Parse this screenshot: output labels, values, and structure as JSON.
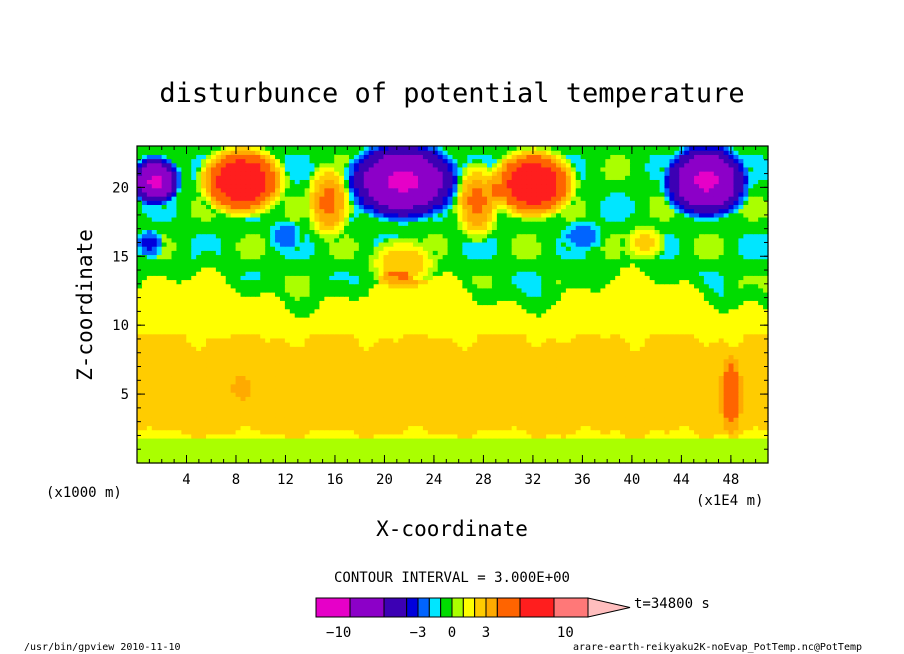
{
  "chart_data": {
    "type": "heatmap",
    "title": "disturbunce of potential temperature",
    "xlabel": "X-coordinate",
    "ylabel": "Z-coordinate",
    "x_unit_left": "(x1000 m)",
    "x_unit_right": "(x1E4 m)",
    "xlim": [
      0,
      51
    ],
    "ylim": [
      0,
      23
    ],
    "x_ticks": [
      4,
      8,
      12,
      16,
      20,
      24,
      28,
      32,
      36,
      40,
      44,
      48
    ],
    "y_ticks": [
      5,
      10,
      15,
      20
    ],
    "contour_interval_text": "CONTOUR INTERVAL = 3.000E+00",
    "time_text": "t=34800 s",
    "colorbar_tick_labels": [
      "−10",
      "−3",
      "0",
      "3",
      "10"
    ],
    "colorbar_tick_values": [
      -10,
      -3,
      0,
      3,
      10
    ],
    "colorbar_bins": [
      {
        "from": -12,
        "to": -9,
        "color": "#e600c8"
      },
      {
        "from": -9,
        "to": -6,
        "color": "#8c00c8"
      },
      {
        "from": -6,
        "to": -4,
        "color": "#3c00b4"
      },
      {
        "from": -4,
        "to": -3,
        "color": "#0000dc"
      },
      {
        "from": -3,
        "to": -2,
        "color": "#0064ff"
      },
      {
        "from": -2,
        "to": -1,
        "color": "#00e6ff"
      },
      {
        "from": -1,
        "to": 0,
        "color": "#00dc00"
      },
      {
        "from": 0,
        "to": 1,
        "color": "#aaff00"
      },
      {
        "from": 1,
        "to": 2,
        "color": "#ffff00"
      },
      {
        "from": 2,
        "to": 3,
        "color": "#ffcc00"
      },
      {
        "from": 3,
        "to": 4,
        "color": "#ffaa00"
      },
      {
        "from": 4,
        "to": 6,
        "color": "#ff6400"
      },
      {
        "from": 6,
        "to": 9,
        "color": "#ff1e1e"
      },
      {
        "from": 9,
        "to": 12,
        "color": "#ff7878"
      },
      {
        "from": 12,
        "to": 14,
        "color": "#ffbebe"
      }
    ],
    "field_regions": [
      {
        "name": "lower-yellow",
        "value": 1.5,
        "x": [
          0,
          51
        ],
        "z": [
          0,
          12.5
        ]
      },
      {
        "name": "lower-orange-band",
        "value": 2.5,
        "x": [
          0,
          51
        ],
        "z": [
          2.5,
          9.5
        ]
      },
      {
        "name": "green-layer",
        "value": -0.5,
        "x": [
          0,
          51
        ],
        "z": [
          12,
          23
        ]
      },
      {
        "name": "negative-core-left",
        "value": -7,
        "x": [
          0,
          3
        ],
        "z": [
          19,
          22
        ]
      },
      {
        "name": "positive-core-8km",
        "value": 7,
        "x": [
          5.5,
          11.5
        ],
        "z": [
          18.5,
          22.5
        ]
      },
      {
        "name": "negative-core-22km",
        "value": -7,
        "x": [
          17.5,
          25.5
        ],
        "z": [
          18,
          22.5
        ]
      },
      {
        "name": "positive-core-32km",
        "value": 7,
        "x": [
          29,
          35
        ],
        "z": [
          18.5,
          22
        ]
      },
      {
        "name": "negative-core-46km",
        "value": -7,
        "x": [
          43,
          49
        ],
        "z": [
          18.5,
          22.5
        ]
      }
    ],
    "footer_left": "/usr/bin/gpview   2010-11-10",
    "footer_right": "arare-earth-reikyaku2K-noEvap_PotTemp.nc@PotTemp"
  }
}
